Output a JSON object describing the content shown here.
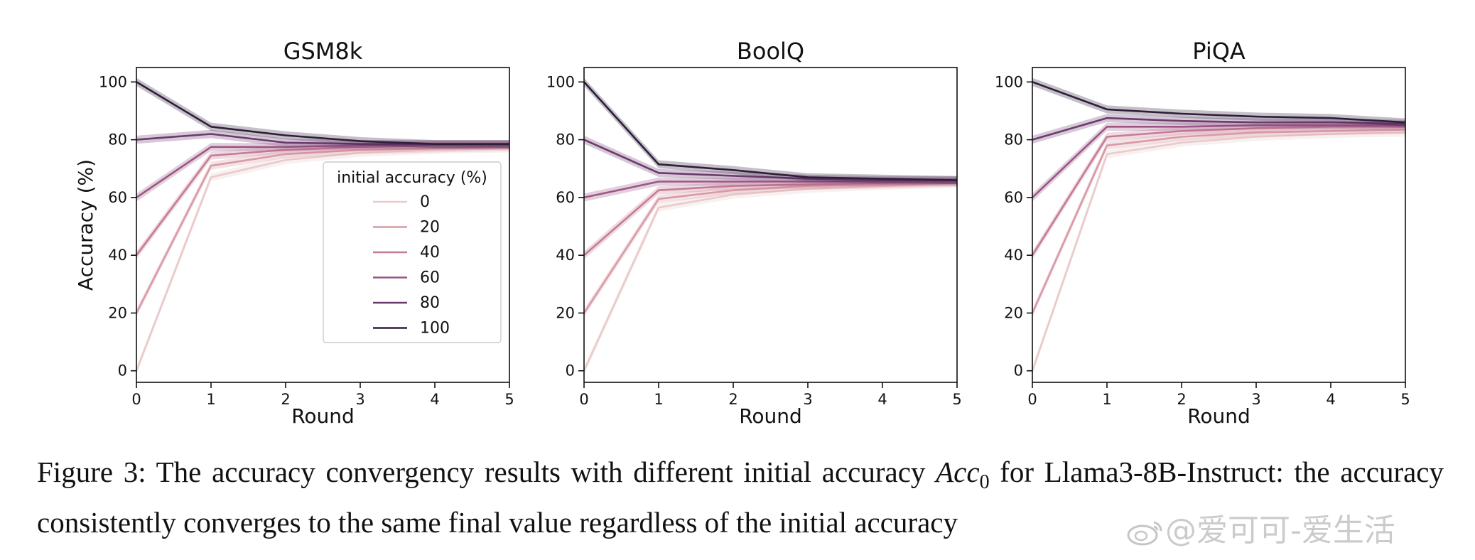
{
  "chart_data": [
    {
      "type": "line",
      "title": "GSM8k",
      "xlabel": "Round",
      "ylabel": "Accuracy (%)",
      "x": [
        0,
        1,
        2,
        3,
        4,
        5
      ],
      "xlim": [
        0,
        5
      ],
      "ylim": [
        -4,
        105
      ],
      "yticks": [
        0,
        20,
        40,
        60,
        80,
        100
      ],
      "legend": {
        "title": "initial accuracy (%)",
        "location": "center-right"
      },
      "series": [
        {
          "name": "0",
          "values": [
            0,
            67,
            73,
            75.5,
            76.5,
            77
          ],
          "color": "#eacaca"
        },
        {
          "name": "20",
          "values": [
            20,
            71,
            75,
            76.5,
            77,
            77.5
          ],
          "color": "#d99aa6"
        },
        {
          "name": "40",
          "values": [
            40,
            74.5,
            76.5,
            77.5,
            78,
            78
          ],
          "color": "#c47b93"
        },
        {
          "name": "60",
          "values": [
            60,
            77.5,
            77.5,
            78,
            78,
            78
          ],
          "color": "#9c5685"
        },
        {
          "name": "80",
          "values": [
            80,
            82,
            79,
            78.5,
            78.5,
            78.5
          ],
          "color": "#6b3a6f"
        },
        {
          "name": "100",
          "values": [
            100,
            84.5,
            81.5,
            79.5,
            78.5,
            78.5
          ],
          "color": "#2e1e3b"
        }
      ]
    },
    {
      "type": "line",
      "title": "BoolQ",
      "xlabel": "Round",
      "ylabel": "",
      "x": [
        0,
        1,
        2,
        3,
        4,
        5
      ],
      "xlim": [
        0,
        5
      ],
      "ylim": [
        -4,
        105
      ],
      "yticks": [
        0,
        20,
        40,
        60,
        80,
        100
      ],
      "series": [
        {
          "name": "0",
          "values": [
            0,
            56.5,
            61,
            63,
            64,
            65
          ],
          "color": "#eacaca"
        },
        {
          "name": "20",
          "values": [
            20,
            59.5,
            62.5,
            64,
            64.5,
            65
          ],
          "color": "#d99aa6"
        },
        {
          "name": "40",
          "values": [
            40,
            62.5,
            64,
            64.5,
            65,
            65.5
          ],
          "color": "#c47b93"
        },
        {
          "name": "60",
          "values": [
            60,
            65.5,
            65.5,
            65.5,
            65.5,
            65.5
          ],
          "color": "#9c5685"
        },
        {
          "name": "80",
          "values": [
            80,
            68.5,
            67.5,
            66.5,
            66,
            66
          ],
          "color": "#6b3a6f"
        },
        {
          "name": "100",
          "values": [
            100,
            71.5,
            69.5,
            67,
            66.5,
            66
          ],
          "color": "#2e1e3b"
        }
      ]
    },
    {
      "type": "line",
      "title": "PiQA",
      "xlabel": "Round",
      "ylabel": "",
      "x": [
        0,
        1,
        2,
        3,
        4,
        5
      ],
      "xlim": [
        0,
        5
      ],
      "ylim": [
        -4,
        105
      ],
      "yticks": [
        0,
        20,
        40,
        60,
        80,
        100
      ],
      "series": [
        {
          "name": "0",
          "values": [
            0,
            75,
            79,
            81,
            82,
            82.5
          ],
          "color": "#eacaca"
        },
        {
          "name": "20",
          "values": [
            20,
            78,
            81,
            82.5,
            83,
            83.5
          ],
          "color": "#d99aa6"
        },
        {
          "name": "40",
          "values": [
            40,
            81,
            83,
            84,
            84.5,
            84.5
          ],
          "color": "#c47b93"
        },
        {
          "name": "60",
          "values": [
            60,
            84.5,
            84.5,
            85,
            85,
            85
          ],
          "color": "#9c5685"
        },
        {
          "name": "80",
          "values": [
            80,
            87.5,
            86.5,
            86,
            86,
            85.5
          ],
          "color": "#6b3a6f"
        },
        {
          "name": "100",
          "values": [
            100,
            90.5,
            89,
            88,
            87.5,
            86
          ],
          "color": "#2e1e3b"
        }
      ]
    }
  ],
  "caption": {
    "lead": "Figure 3: The accuracy convergency results with different initial accuracy ",
    "acc_symbol": "Acc",
    "acc_subscript": "0",
    "tail": " for Llama3-8B-Instruct: the accuracy consistently converges to the same final value regardless of the initial accuracy"
  },
  "watermark": {
    "text": "@爱可可-爱生活"
  }
}
